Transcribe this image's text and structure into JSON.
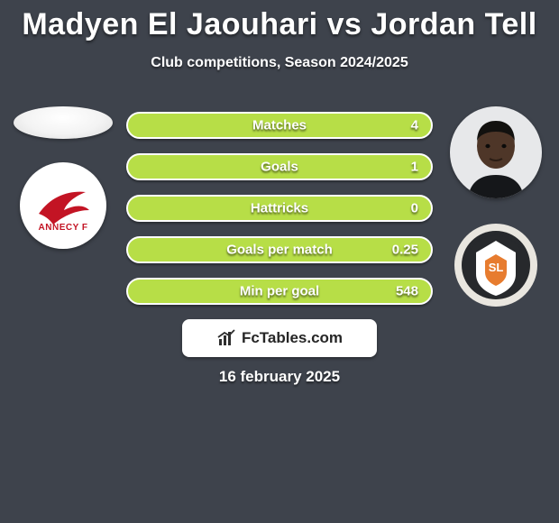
{
  "background_color": "#3e434c",
  "text_color": "#ffffff",
  "title": "Madyen El Jaouhari vs Jordan Tell",
  "subtitle": "Club competitions, Season 2024/2025",
  "date": "16 february 2025",
  "stat_bar": {
    "fill_color": "#b7de47",
    "border_color": "#ffffff",
    "height": 30,
    "gap": 16
  },
  "stats": [
    {
      "label": "Matches",
      "value": "4"
    },
    {
      "label": "Goals",
      "value": "1"
    },
    {
      "label": "Hattricks",
      "value": "0"
    },
    {
      "label": "Goals per match",
      "value": "0.25"
    },
    {
      "label": "Min per goal",
      "value": "548"
    }
  ],
  "left": {
    "club_name": "ANNECY F",
    "club_primary": "#c31424"
  },
  "right": {
    "club_name": "STADE LAVALLOIS",
    "club_bg": "#27292c",
    "club_ring": "#e9e6df",
    "club_accent": "#e77c2f",
    "avatar_bg": "#e7e8ea",
    "skin": "#4e3628",
    "shirt": "#15171a"
  },
  "brand": {
    "bg": "#ffffff",
    "text": "FcTables.com",
    "icon_color": "#2e2e2e"
  }
}
